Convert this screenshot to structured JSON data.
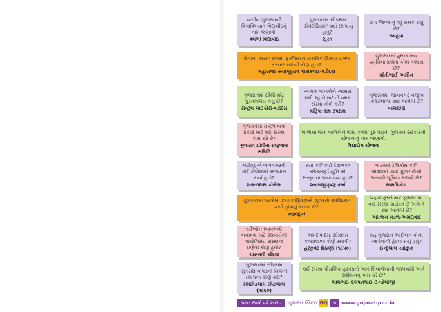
{
  "cards": [
    {
      "question": "પ્રાચીન ગુજરાતની વિશ્વવિખ્યાત વિદ્યાપીઠનું નામ જણાવો.",
      "answer": "વલભી વિદ્યાપીઠ"
    },
    {
      "question": "ગુજરાતમાં સૌપ્રથમ 'સેનેટોરિયમ' ક્યાં સ્થપાયું હતું?",
      "answer": "સુરત"
    },
    {
      "question": "ડાંગ જિલ્લાનું વડું મથક કયું છે?",
      "answer": "આહવા"
    },
    {
      "question": "પોતાના શાસનકાળમાં ફરજિયાત પ્રાથમિક શિક્ષણ દાખલ કરનાર રાજવી કોણ હતા?",
      "answer": "મહારાજા સયાજીરાવ ગાયકવાડ-વડોદરા"
    },
    {
      "question": "ગુજરાતમાં પુસ્તકાલય પ્રવૃત્તિના પ્રણેતા કોણ ગણાય છે?",
      "answer": "મોતીભાઈ અમીન"
    },
    {
      "question": "ગુજરાતમાં સૌથી મોટું પુસ્તકાલય કયું છે?",
      "answer": "સેન્ટ્રલ લાઈબ્રેરી-વડોદરા"
    },
    {
      "question": "અનાથ બાળકોને આશ્રય મળી રહે તે માટેની પ્રથમ સંસ્થા કોણે કરી?",
      "answer": "મહિપતરામ રૂપરામ"
    },
    {
      "question": "ગુજરાતમાં જામનગર નજીક ક્રિકેટશાળા ક્યાં આવેલી છે?",
      "answer": "બાલાછડી"
    },
    {
      "question": "ગુજરાતમાં રાષ્ટ્રભાષાના પ્રચાર માટે કઈ સંસ્થા કામ કરે છે?",
      "answer": "ગુજરાત પ્રાંતીય રાષ્ટ્રભાષા સમિતિ"
    },
    {
      "question": "શાળામાં જતા બાળકોને વીમા કવચ પૂરું પાડતી ગુજરાત સરકારની યોજનાનું નામ જણાવો.",
      "answer": "વિદ્યાદીપ યોજના"
    },
    {
      "question": "ગાંધીજીએ ભાવનગરની કઈ કોલેજમાં અભ્યાસ કર્યો હતો?",
      "answer": "શામળદાસ કોલેજ"
    },
    {
      "question": "કયા ક્રાંતિકારી દેશભક્ત ઑક્સફર્ડ યુનિ.માં સંસ્કૃતના અધ્યાપક હતા?",
      "answer": "શ્યામજીકૃષ્ણ વર્મા"
    },
    {
      "question": "ભારતમાં ટેલિકોમ ક્રાંતિ લાવવામાં કયા ગુજરાતીએ અગ્રણી ભૂમિકા ભજવી છે?",
      "answer": "સામપિત્રોડા"
    },
    {
      "question": "ગુજરાતમાં જન્મેલા કયા ગણિતજ્ઞએ શૂન્યનો આવિષ્કાર કર્યો હોવાનું મનાય છે?",
      "answer": "બ્રહ્મગુપ્ત"
    },
    {
      "question": "પ્રજ્ઞાચક્ષુઓ માટે ગુજરાતમાં કઈ સંસ્થા કાર્યરત છે અને તે ક્યાં આવેલી છે?",
      "answer": "અંધજન મંડળ-અમદાવાદ"
    },
    {
      "question": "સ્ત્રીઓને સ્વાવલંબી બનાવવા માટે સ્થપાયેલી જ્યોતિસંઘ સંસ્થાના પ્રણેતા કોણ હતાં?",
      "answer": "ચારુમતી યોદ્ધા"
    },
    {
      "question": "અમદાવાદમાં સૌપ્રથમ કન્યાશાળા કોણે સ્થાપી?",
      "answer": "હરકુંવર શેઠાણી (૧૮૫૦)"
    },
    {
      "question": "મહાગુજરાત આંદોલન કોની આગેવાની હેઠળ થયું હતું?",
      "answer": "ઈન્દુલાલ યાજ્ઞિક"
    },
    {
      "question": "ગુજરાતમાં સૌપ્રથમ સુતરાઉ કાપડની મિલની સ્થાપના કોણે કરી?",
      "answer": "રણછોડલાલ છોટાલાલ (૧૮૬૦)"
    },
    {
      "question": "કઈ સંસ્થા પૌરાણિક હસ્તપ્રતો અને શિલાલેખોની જાળવણી અને સંશોધનનું કામ કરે છે?",
      "answer": "લાલભાઈ દલપતભાઈ ઈન્ડોલૉજી"
    }
  ],
  "footer": {
    "series": "પ્રશ્ન સ્પર્ધા વર્ષ ૨૦૧૦",
    "brand": "ગુજરાત ક્વિઝ",
    "logo": "GQ",
    "page": "૫",
    "url": "www.gujaratquiz.in"
  }
}
